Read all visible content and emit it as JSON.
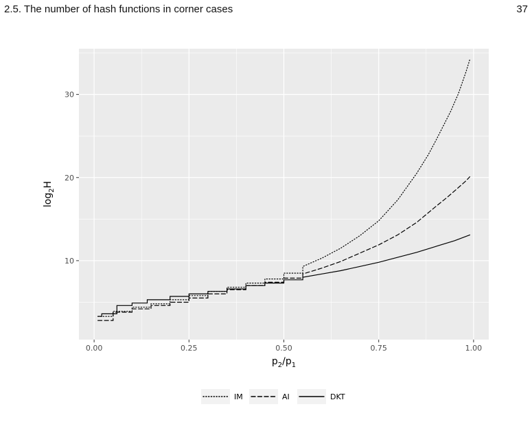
{
  "page": {
    "running_title": "2.5.  The number of hash functions in corner cases",
    "page_number": "37"
  },
  "chart_data": {
    "type": "line",
    "title": "",
    "xlabel_main": "p",
    "xlabel_sub1": "2",
    "xlabel_sep": "/p",
    "xlabel_sub2": "1",
    "ylabel_main": "log",
    "ylabel_sub": "2",
    "ylabel_tail": "H",
    "xlim": [
      -0.04,
      1.04
    ],
    "ylim": [
      0.5,
      35.5
    ],
    "x_ticks": [
      0,
      0.25,
      0.5,
      0.75,
      1.0
    ],
    "x_tick_labels": [
      "0.00",
      "0.25",
      "0.50",
      "0.75",
      "1.00"
    ],
    "y_ticks": [
      10,
      20,
      30
    ],
    "y_tick_labels": [
      "10",
      "20",
      "30"
    ],
    "grid": true,
    "legend_position": "bottom",
    "colors": {
      "panel": "#ebebeb",
      "grid": "#ffffff",
      "line": "#000000",
      "legend_key": "#f2f2f2"
    },
    "series": [
      {
        "name": "IM",
        "linestyle": "dotted",
        "x": [
          0.01,
          0.05,
          0.1,
          0.15,
          0.2,
          0.25,
          0.3,
          0.35,
          0.4,
          0.45,
          0.5,
          0.55,
          0.6,
          0.65,
          0.7,
          0.75,
          0.8,
          0.85,
          0.88,
          0.9,
          0.92,
          0.94,
          0.96,
          0.97,
          0.98,
          0.99
        ],
        "y": [
          3.3,
          3.9,
          4.4,
          4.8,
          5.3,
          5.8,
          6.3,
          6.8,
          7.3,
          7.8,
          8.5,
          9.3,
          10.3,
          11.5,
          13.0,
          14.8,
          17.3,
          20.5,
          22.7,
          24.4,
          26.2,
          28.0,
          30.1,
          31.4,
          32.7,
          34.2
        ]
      },
      {
        "name": "AI",
        "linestyle": "dashed",
        "x": [
          0.01,
          0.05,
          0.1,
          0.15,
          0.2,
          0.25,
          0.3,
          0.35,
          0.4,
          0.45,
          0.5,
          0.55,
          0.6,
          0.65,
          0.7,
          0.75,
          0.8,
          0.85,
          0.9,
          0.93,
          0.95,
          0.97,
          0.98,
          0.99
        ],
        "y": [
          2.8,
          3.8,
          4.2,
          4.6,
          5.0,
          5.5,
          6.0,
          6.5,
          7.0,
          7.4,
          7.9,
          8.4,
          9.1,
          9.9,
          10.9,
          11.9,
          13.1,
          14.6,
          16.5,
          17.6,
          18.4,
          19.2,
          19.6,
          20.1
        ]
      },
      {
        "name": "DKT",
        "linestyle": "solid",
        "x": [
          0.01,
          0.02,
          0.06,
          0.1,
          0.14,
          0.2,
          0.25,
          0.3,
          0.35,
          0.4,
          0.45,
          0.5,
          0.55,
          0.6,
          0.65,
          0.7,
          0.75,
          0.8,
          0.85,
          0.9,
          0.95,
          0.99
        ],
        "y": [
          3.3,
          3.6,
          4.6,
          4.9,
          5.3,
          5.7,
          6.0,
          6.3,
          6.6,
          7.0,
          7.3,
          7.7,
          8.0,
          8.4,
          8.8,
          9.3,
          9.8,
          10.4,
          11.0,
          11.7,
          12.4,
          13.1
        ]
      }
    ]
  }
}
